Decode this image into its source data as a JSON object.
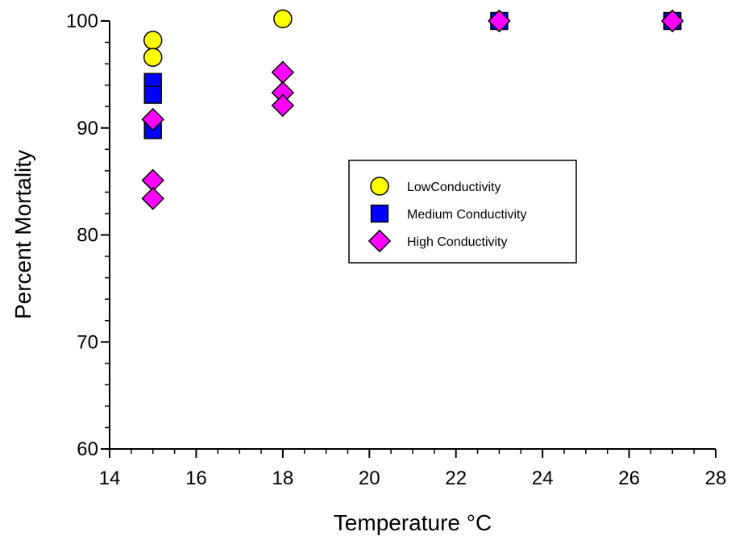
{
  "chart_data": {
    "type": "scatter",
    "xlabel": "Temperature °C",
    "ylabel": "Percent Mortality",
    "xlim": [
      14,
      28
    ],
    "ylim": [
      60,
      100
    ],
    "x_ticks": [
      14,
      16,
      18,
      20,
      22,
      24,
      26,
      28
    ],
    "y_ticks": [
      60,
      70,
      80,
      90,
      100
    ],
    "x_ticks_labels": [
      "14",
      "16",
      "18",
      "20",
      "22",
      "24",
      "26",
      "28"
    ],
    "y_ticks_labels": [
      "60",
      "70",
      "80",
      "90",
      "100"
    ],
    "x_minor_step": 0.5,
    "y_minor_step": 2,
    "grid": false,
    "legend_position": "center-right",
    "series": [
      {
        "name": "LowConductivity",
        "marker": "circle",
        "color": "#ffff00",
        "points": [
          [
            15,
            98.2
          ],
          [
            15,
            96.6
          ],
          [
            18,
            100.2
          ],
          [
            23,
            100
          ],
          [
            27,
            100
          ]
        ]
      },
      {
        "name": "Medium Conductivity",
        "marker": "square",
        "color": "#0000ff",
        "points": [
          [
            15,
            94.3
          ],
          [
            15,
            93.1
          ],
          [
            15,
            89.8
          ],
          [
            23,
            100
          ],
          [
            27,
            100
          ]
        ]
      },
      {
        "name": "High Conductivity",
        "marker": "diamond",
        "color": "#ff00ff",
        "points": [
          [
            15,
            90.8
          ],
          [
            15,
            85.1
          ],
          [
            15,
            83.4
          ],
          [
            18,
            95.2
          ],
          [
            18,
            93.3
          ],
          [
            18,
            92.1
          ],
          [
            23,
            100
          ],
          [
            27,
            100
          ]
        ]
      }
    ]
  }
}
